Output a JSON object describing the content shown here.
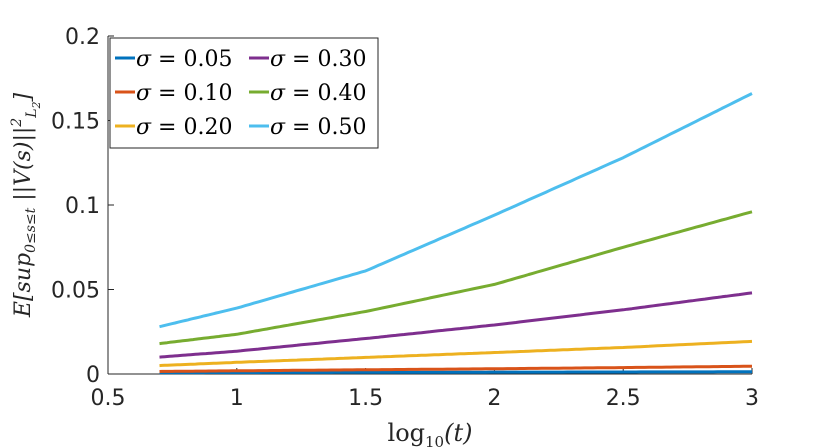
{
  "chart_data": {
    "type": "line",
    "xlabel": "log10(t)",
    "xlabel_base": "log",
    "xlabel_sub": "10",
    "xlabel_arg": "(t)",
    "ylabel": "E[sup0≤s≤t ||V(s)||²L²]",
    "ylabel_parts": {
      "a": "E[sup",
      "b": "0≤s≤t",
      "c": " ||V(s)||",
      "d": "2",
      "e": "L",
      "f": "2",
      "g": "]"
    },
    "xlim": [
      0.5,
      3
    ],
    "ylim": [
      0,
      0.2
    ],
    "xticks": [
      0.5,
      1,
      1.5,
      2,
      2.5,
      3
    ],
    "xtick_labels": [
      "0.5",
      "1",
      "1.5",
      "2",
      "2.5",
      "3"
    ],
    "yticks": [
      0,
      0.05,
      0.1,
      0.15,
      0.2
    ],
    "ytick_labels": [
      "0",
      "0.05",
      "0.1",
      "0.15",
      "0.2"
    ],
    "legend_position": "top-left",
    "series": [
      {
        "name": "σ = 0.05",
        "symbol": "σ",
        "label": " = 0.05",
        "color": "#0072BD",
        "x": [
          0.7,
          1.0,
          1.5,
          2.0,
          2.5,
          3.0
        ],
        "y": [
          0.0008,
          0.0009,
          0.001,
          0.0011,
          0.0012,
          0.0013
        ]
      },
      {
        "name": "σ = 0.10",
        "symbol": "σ",
        "label": " = 0.10",
        "color": "#D95319",
        "x": [
          0.7,
          1.0,
          1.5,
          2.0,
          2.5,
          3.0
        ],
        "y": [
          0.0015,
          0.0019,
          0.0025,
          0.0031,
          0.0038,
          0.0046
        ]
      },
      {
        "name": "σ = 0.20",
        "symbol": "σ",
        "label": " = 0.20",
        "color": "#EDB120",
        "x": [
          0.7,
          1.0,
          1.5,
          2.0,
          2.5,
          3.0
        ],
        "y": [
          0.005,
          0.0069,
          0.0098,
          0.0127,
          0.0157,
          0.0193
        ]
      },
      {
        "name": "σ = 0.30",
        "symbol": "σ",
        "label": " = 0.30",
        "color": "#7E2F8E",
        "x": [
          0.7,
          1.0,
          1.5,
          2.0,
          2.5,
          3.0
        ],
        "y": [
          0.01,
          0.0135,
          0.021,
          0.029,
          0.038,
          0.048
        ]
      },
      {
        "name": "σ = 0.40",
        "symbol": "σ",
        "label": " = 0.40",
        "color": "#77AC30",
        "x": [
          0.7,
          1.0,
          1.5,
          2.0,
          2.5,
          3.0
        ],
        "y": [
          0.018,
          0.0235,
          0.037,
          0.053,
          0.075,
          0.096
        ]
      },
      {
        "name": "σ = 0.50",
        "symbol": "σ",
        "label": " = 0.50",
        "color": "#4DBEEE",
        "x": [
          0.7,
          1.0,
          1.5,
          2.0,
          2.5,
          3.0
        ],
        "y": [
          0.028,
          0.039,
          0.061,
          0.094,
          0.128,
          0.166
        ]
      }
    ]
  }
}
